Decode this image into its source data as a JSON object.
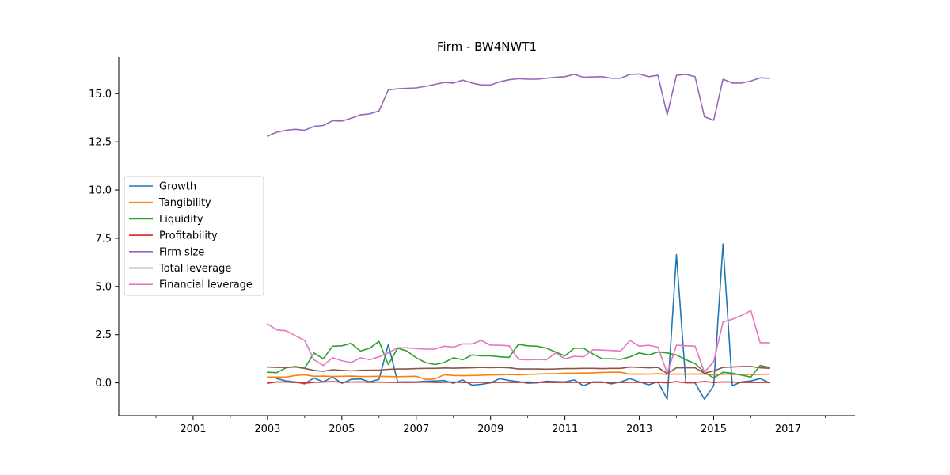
{
  "chart_data": {
    "type": "line",
    "title": "Firm - BW4NWT1",
    "xlabel": "",
    "ylabel": "",
    "xlim": [
      1999.0,
      2018.8
    ],
    "ylim": [
      -1.7,
      16.9
    ],
    "x_ticks": [
      2001,
      2003,
      2005,
      2007,
      2009,
      2011,
      2013,
      2015,
      2017
    ],
    "x_tick_labels": [
      "2001",
      "2003",
      "2005",
      "2007",
      "2009",
      "2011",
      "2013",
      "2015",
      "2017"
    ],
    "x_minor_ticks": [
      2000,
      2002,
      2004,
      2006,
      2008,
      2010,
      2012,
      2014,
      2016,
      2018
    ],
    "y_ticks": [
      0,
      2.5,
      5,
      7.5,
      10,
      12.5,
      15
    ],
    "y_tick_labels": [
      "0.0",
      "2.5",
      "5.0",
      "7.5",
      "10.0",
      "12.5",
      "15.0"
    ],
    "grid": false,
    "legend_position": "center-left",
    "x": [
      2003.0,
      2003.25,
      2003.5,
      2003.75,
      2004.0,
      2004.25,
      2004.5,
      2004.75,
      2005.0,
      2005.25,
      2005.5,
      2005.75,
      2006.0,
      2006.25,
      2006.5,
      2006.75,
      2007.0,
      2007.25,
      2007.5,
      2007.75,
      2008.0,
      2008.25,
      2008.5,
      2008.75,
      2009.0,
      2009.25,
      2009.5,
      2009.75,
      2010.0,
      2010.25,
      2010.5,
      2010.75,
      2011.0,
      2011.25,
      2011.5,
      2011.75,
      2012.0,
      2012.25,
      2012.5,
      2012.75,
      2013.0,
      2013.25,
      2013.5,
      2013.75,
      2014.0,
      2014.25,
      2014.5,
      2014.75,
      2015.0,
      2015.25,
      2015.5,
      2015.75,
      2016.0,
      2016.25,
      2016.5
    ],
    "series": [
      {
        "name": "Growth",
        "color": "#1f77b4",
        "values": [
          null,
          0.22,
          0.1,
          0.05,
          -0.05,
          0.25,
          0.05,
          0.3,
          -0.02,
          0.18,
          0.2,
          0.05,
          0.18,
          2.0,
          0.05,
          0.05,
          0.05,
          0.08,
          0.1,
          0.12,
          -0.02,
          0.15,
          -0.12,
          -0.08,
          0.0,
          0.22,
          0.12,
          0.06,
          -0.02,
          0.0,
          0.08,
          0.06,
          0.05,
          0.15,
          -0.15,
          0.05,
          0.05,
          -0.05,
          0.05,
          0.22,
          0.05,
          -0.1,
          0.05,
          -0.85,
          6.65,
          0.0,
          0.0,
          -0.85,
          -0.15,
          7.2,
          -0.15,
          0.05,
          0.1,
          0.22,
          0.0
        ]
      },
      {
        "name": "Tangibility",
        "color": "#ff7f0e",
        "values": [
          0.3,
          0.3,
          0.3,
          0.38,
          0.42,
          0.34,
          0.35,
          0.33,
          0.34,
          0.35,
          0.33,
          0.33,
          0.34,
          0.33,
          0.32,
          0.33,
          0.34,
          0.18,
          0.2,
          0.42,
          0.38,
          0.37,
          0.38,
          0.4,
          0.41,
          0.42,
          0.43,
          0.42,
          0.44,
          0.45,
          0.47,
          0.47,
          0.5,
          0.5,
          0.51,
          0.52,
          0.54,
          0.55,
          0.55,
          0.45,
          0.46,
          0.45,
          0.47,
          0.44,
          0.46,
          0.45,
          0.46,
          0.45,
          0.42,
          0.45,
          0.44,
          0.43,
          0.44,
          0.44,
          0.45
        ]
      },
      {
        "name": "Liquidity",
        "color": "#2ca02c",
        "values": [
          0.55,
          0.53,
          0.78,
          0.85,
          0.75,
          1.55,
          1.25,
          1.9,
          1.92,
          2.05,
          1.65,
          1.8,
          2.15,
          0.95,
          1.8,
          1.65,
          1.3,
          1.05,
          0.95,
          1.05,
          1.3,
          1.2,
          1.45,
          1.4,
          1.4,
          1.35,
          1.32,
          2.0,
          1.92,
          1.9,
          1.8,
          1.6,
          1.4,
          1.8,
          1.8,
          1.5,
          1.25,
          1.25,
          1.22,
          1.35,
          1.55,
          1.45,
          1.6,
          1.55,
          1.45,
          1.2,
          1.0,
          0.55,
          0.25,
          0.55,
          0.5,
          0.4,
          0.3,
          0.9,
          0.8
        ]
      },
      {
        "name": "Profitability",
        "color": "#d62728",
        "values": [
          -0.02,
          0.05,
          0.04,
          0.02,
          -0.02,
          0.03,
          0.04,
          0.06,
          0.03,
          0.04,
          0.05,
          0.03,
          0.04,
          0.03,
          0.03,
          0.02,
          0.03,
          0.04,
          0.02,
          0.03,
          0.04,
          0.02,
          0.03,
          0.03,
          0.02,
          0.03,
          0.03,
          0.02,
          0.04,
          0.03,
          0.02,
          0.03,
          0.02,
          0.03,
          0.03,
          0.02,
          0.02,
          0.03,
          0.02,
          0.03,
          0.03,
          0.02,
          0.03,
          0.0,
          0.06,
          0.01,
          0.02,
          0.07,
          0.02,
          0.05,
          0.04,
          0.02,
          0.03,
          0.02,
          0.02
        ]
      },
      {
        "name": "Firm size",
        "color": "#9467bd",
        "values": [
          12.8,
          13.0,
          13.1,
          13.15,
          13.1,
          13.3,
          13.35,
          13.6,
          13.58,
          13.72,
          13.9,
          13.95,
          14.1,
          15.2,
          15.25,
          15.28,
          15.3,
          15.38,
          15.48,
          15.58,
          15.55,
          15.7,
          15.55,
          15.45,
          15.45,
          15.62,
          15.72,
          15.78,
          15.75,
          15.75,
          15.8,
          15.85,
          15.88,
          16.0,
          15.85,
          15.87,
          15.88,
          15.8,
          15.8,
          16.0,
          16.02,
          15.88,
          15.95,
          13.9,
          15.95,
          16.0,
          15.88,
          13.8,
          13.62,
          15.75,
          15.55,
          15.55,
          15.65,
          15.82,
          15.8
        ]
      },
      {
        "name": "Total leverage",
        "color": "#8c564b",
        "values": [
          0.82,
          0.8,
          0.8,
          0.82,
          0.75,
          0.65,
          0.6,
          0.68,
          0.65,
          0.62,
          0.65,
          0.66,
          0.66,
          0.7,
          0.72,
          0.72,
          0.74,
          0.75,
          0.75,
          0.77,
          0.76,
          0.77,
          0.78,
          0.8,
          0.79,
          0.8,
          0.78,
          0.72,
          0.72,
          0.72,
          0.71,
          0.72,
          0.74,
          0.74,
          0.75,
          0.75,
          0.74,
          0.75,
          0.75,
          0.82,
          0.8,
          0.78,
          0.8,
          0.48,
          0.78,
          0.78,
          0.78,
          0.5,
          0.62,
          0.8,
          0.82,
          0.84,
          0.85,
          0.78,
          0.75
        ]
      },
      {
        "name": "Financial leverage",
        "color": "#e377c2",
        "values": [
          3.05,
          2.75,
          2.7,
          2.45,
          2.2,
          1.2,
          0.9,
          1.3,
          1.15,
          1.05,
          1.3,
          1.2,
          1.35,
          1.55,
          1.82,
          1.82,
          1.78,
          1.75,
          1.75,
          1.9,
          1.85,
          2.02,
          2.02,
          2.2,
          1.95,
          1.95,
          1.92,
          1.22,
          1.2,
          1.22,
          1.2,
          1.55,
          1.25,
          1.38,
          1.35,
          1.72,
          1.7,
          1.68,
          1.65,
          2.2,
          1.9,
          1.95,
          1.85,
          0.5,
          1.95,
          1.92,
          1.9,
          0.55,
          1.1,
          3.15,
          3.3,
          3.5,
          3.75,
          2.08,
          2.08
        ]
      }
    ]
  }
}
